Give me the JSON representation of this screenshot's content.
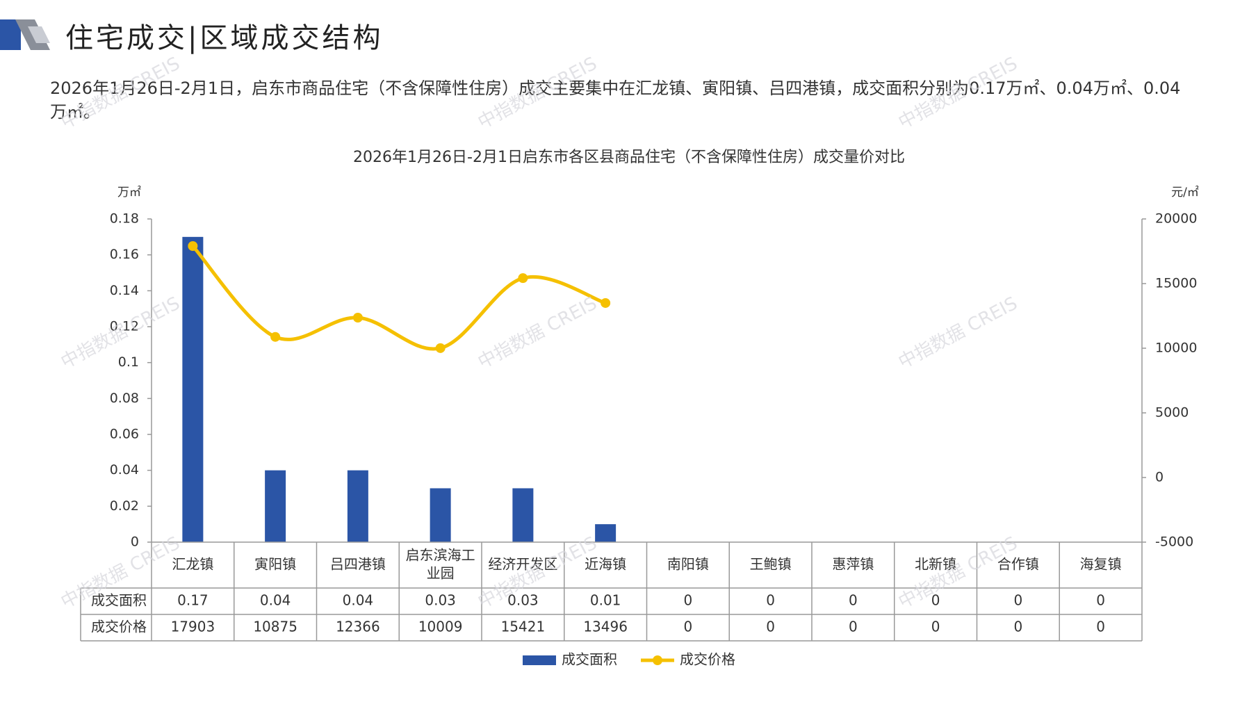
{
  "header": {
    "title": "住宅成交|区域成交结构"
  },
  "description": "2026年1月26日-2月1日，启东市商品住宅（不含保障性住房）成交主要集中在汇龙镇、寅阳镇、吕四港镇，成交面积分别为0.17万㎡、0.04万㎡、0.04万㎡。",
  "watermark": "中指数据 CREIS",
  "colors": {
    "bar": "#2b55a6",
    "line": "#f5c000",
    "grid": "#999999"
  },
  "chart_data": {
    "type": "bar",
    "title": "2026年1月26日-2月1日启东市各区县商品住宅（不含保障性住房）成交量价对比",
    "y_left_unit": "万㎡",
    "y_right_unit": "元/㎡",
    "y_left_ticks": [
      "0.18",
      "0.16",
      "0.14",
      "0.12",
      "0.1",
      "0.08",
      "0.06",
      "0.04",
      "0.02",
      "0"
    ],
    "y_right_ticks": [
      "20000",
      "15000",
      "10000",
      "5000",
      "0",
      "-5000"
    ],
    "ylim_left": [
      0,
      0.18
    ],
    "ylim_right": [
      -5000,
      20000
    ],
    "categories": [
      "汇龙镇",
      "寅阳镇",
      "吕四港镇",
      "启东滨海工业园",
      "经济开发区",
      "近海镇",
      "南阳镇",
      "王鲍镇",
      "惠萍镇",
      "北新镇",
      "合作镇",
      "海复镇"
    ],
    "series": [
      {
        "name": "成交面积",
        "type": "bar",
        "axis": "left",
        "values": [
          0.17,
          0.04,
          0.04,
          0.03,
          0.03,
          0.01,
          0,
          0,
          0,
          0,
          0,
          0
        ],
        "labels": [
          "0.17",
          "0.04",
          "0.04",
          "0.03",
          "0.03",
          "0.01",
          "0",
          "0",
          "0",
          "0",
          "0",
          "0"
        ]
      },
      {
        "name": "成交价格",
        "type": "line",
        "axis": "right",
        "values": [
          17903,
          10875,
          12366,
          10009,
          15421,
          13496,
          0,
          0,
          0,
          0,
          0,
          0
        ],
        "labels": [
          "17903",
          "10875",
          "12366",
          "10009",
          "15421",
          "13496",
          "0",
          "0",
          "0",
          "0",
          "0",
          "0"
        ]
      }
    ],
    "legend_position": "bottom"
  }
}
